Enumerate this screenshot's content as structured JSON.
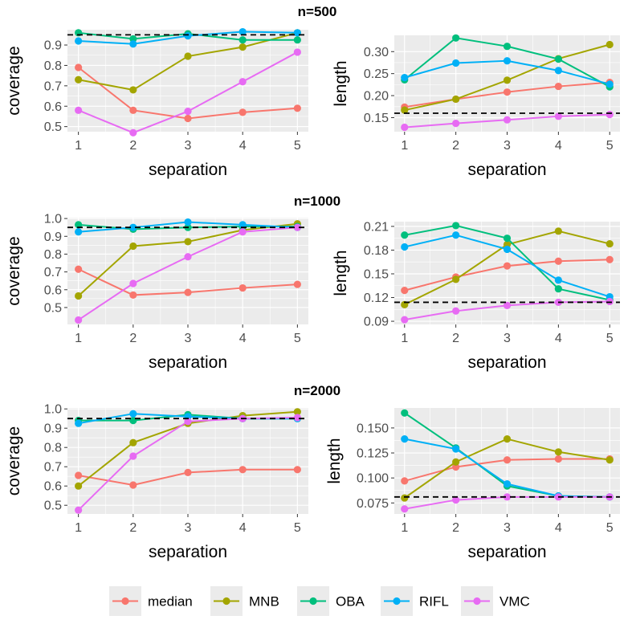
{
  "series_colors": {
    "median": "#F8766D",
    "MNB": "#A3A500",
    "OBA": "#00BF7D",
    "RIFL": "#00B0F6",
    "VMC": "#E76BF3"
  },
  "legend": {
    "items": [
      {
        "name": "median",
        "color": "#F8766D"
      },
      {
        "name": "MNB",
        "color": "#A3A500"
      },
      {
        "name": "OBA",
        "color": "#00BF7D"
      },
      {
        "name": "RIFL",
        "color": "#00B0F6"
      },
      {
        "name": "VMC",
        "color": "#E76BF3"
      }
    ]
  },
  "chart_data": [
    {
      "type": "line",
      "group_title": "n=500",
      "title": "",
      "xlabel": "separation",
      "ylabel": "coverage",
      "x": [
        1,
        2,
        3,
        4,
        5
      ],
      "xlim": [
        0.8,
        5.2
      ],
      "ylim": [
        0.475,
        0.975
      ],
      "yticks": [
        0.5,
        0.6,
        0.7,
        0.8,
        0.9
      ],
      "ytick_labels": [
        "0.5",
        "0.6",
        "0.7",
        "0.8",
        "0.9"
      ],
      "reference_line": 0.95,
      "series": [
        {
          "name": "median",
          "values": [
            0.79,
            0.58,
            0.54,
            0.57,
            0.59
          ]
        },
        {
          "name": "MNB",
          "values": [
            0.73,
            0.68,
            0.845,
            0.89,
            0.96
          ]
        },
        {
          "name": "OBA",
          "values": [
            0.96,
            0.93,
            0.955,
            0.925,
            0.925
          ]
        },
        {
          "name": "RIFL",
          "values": [
            0.92,
            0.905,
            0.945,
            0.965,
            0.96
          ]
        },
        {
          "name": "VMC",
          "values": [
            0.58,
            0.47,
            0.575,
            0.72,
            0.865
          ]
        }
      ]
    },
    {
      "type": "line",
      "group_title": "",
      "title": "",
      "xlabel": "separation",
      "ylabel": "length",
      "x": [
        1,
        2,
        3,
        4,
        5
      ],
      "xlim": [
        0.8,
        5.2
      ],
      "ylim": [
        0.118,
        0.337
      ],
      "yticks": [
        0.15,
        0.2,
        0.25,
        0.3
      ],
      "ytick_labels": [
        "0.15",
        "0.20",
        "0.25",
        "0.30"
      ],
      "reference_line": 0.16,
      "series": [
        {
          "name": "median",
          "values": [
            0.174,
            0.192,
            0.208,
            0.221,
            0.23
          ]
        },
        {
          "name": "MNB",
          "values": [
            0.167,
            0.192,
            0.235,
            0.284,
            0.316
          ]
        },
        {
          "name": "OBA",
          "values": [
            0.236,
            0.331,
            0.312,
            0.283,
            0.22
          ]
        },
        {
          "name": "RIFL",
          "values": [
            0.241,
            0.274,
            0.279,
            0.257,
            0.226
          ]
        },
        {
          "name": "VMC",
          "values": [
            0.128,
            0.137,
            0.145,
            0.153,
            0.157
          ]
        }
      ]
    },
    {
      "type": "line",
      "group_title": "n=1000",
      "title": "",
      "xlabel": "separation",
      "ylabel": "coverage",
      "x": [
        1,
        2,
        3,
        4,
        5
      ],
      "xlim": [
        0.8,
        5.2
      ],
      "ylim": [
        0.405,
        1.005
      ],
      "yticks": [
        0.5,
        0.6,
        0.7,
        0.8,
        0.9,
        1.0
      ],
      "ytick_labels": [
        "0.5",
        "0.6",
        "0.7",
        "0.8",
        "0.9",
        "1.0"
      ],
      "reference_line": 0.95,
      "series": [
        {
          "name": "median",
          "values": [
            0.715,
            0.57,
            0.585,
            0.61,
            0.63
          ]
        },
        {
          "name": "MNB",
          "values": [
            0.565,
            0.845,
            0.87,
            0.935,
            0.97
          ]
        },
        {
          "name": "OBA",
          "values": [
            0.965,
            0.94,
            0.95,
            0.955,
            0.955
          ]
        },
        {
          "name": "RIFL",
          "values": [
            0.925,
            0.95,
            0.98,
            0.965,
            0.95
          ]
        },
        {
          "name": "VMC",
          "values": [
            0.43,
            0.635,
            0.785,
            0.925,
            0.95
          ]
        }
      ]
    },
    {
      "type": "line",
      "group_title": "",
      "title": "",
      "xlabel": "separation",
      "ylabel": "length",
      "x": [
        1,
        2,
        3,
        4,
        5
      ],
      "xlim": [
        0.8,
        5.2
      ],
      "ylim": [
        0.086,
        0.216
      ],
      "yticks": [
        0.09,
        0.12,
        0.15,
        0.18,
        0.21
      ],
      "ytick_labels": [
        "0.09",
        "0.12",
        "0.15",
        "0.18",
        "0.21"
      ],
      "reference_line": 0.114,
      "series": [
        {
          "name": "median",
          "values": [
            0.129,
            0.146,
            0.16,
            0.166,
            0.168
          ]
        },
        {
          "name": "MNB",
          "values": [
            0.111,
            0.143,
            0.187,
            0.204,
            0.188
          ]
        },
        {
          "name": "OBA",
          "values": [
            0.199,
            0.211,
            0.195,
            0.131,
            0.117
          ]
        },
        {
          "name": "RIFL",
          "values": [
            0.184,
            0.199,
            0.181,
            0.142,
            0.121
          ]
        },
        {
          "name": "VMC",
          "values": [
            0.092,
            0.103,
            0.11,
            0.114,
            0.115
          ]
        }
      ]
    },
    {
      "type": "line",
      "group_title": "n=2000",
      "title": "",
      "xlabel": "separation",
      "ylabel": "coverage",
      "x": [
        1,
        2,
        3,
        4,
        5
      ],
      "xlim": [
        0.8,
        5.2
      ],
      "ylim": [
        0.455,
        1.005
      ],
      "yticks": [
        0.5,
        0.6,
        0.7,
        0.8,
        0.9,
        1.0
      ],
      "ytick_labels": [
        "0.5",
        "0.6",
        "0.7",
        "0.8",
        "0.9",
        "1.0"
      ],
      "reference_line": 0.95,
      "series": [
        {
          "name": "median",
          "values": [
            0.655,
            0.605,
            0.67,
            0.685,
            0.685
          ]
        },
        {
          "name": "MNB",
          "values": [
            0.6,
            0.825,
            0.925,
            0.965,
            0.985
          ]
        },
        {
          "name": "OBA",
          "values": [
            0.94,
            0.94,
            0.97,
            0.95,
            0.95
          ]
        },
        {
          "name": "RIFL",
          "values": [
            0.925,
            0.975,
            0.96,
            0.95,
            0.95
          ]
        },
        {
          "name": "VMC",
          "values": [
            0.475,
            0.755,
            0.935,
            0.95,
            0.955
          ]
        }
      ]
    },
    {
      "type": "line",
      "group_title": "",
      "title": "",
      "xlabel": "separation",
      "ylabel": "length",
      "x": [
        1,
        2,
        3,
        4,
        5
      ],
      "xlim": [
        0.8,
        5.2
      ],
      "ylim": [
        0.064,
        0.17
      ],
      "yticks": [
        0.075,
        0.1,
        0.125,
        0.15
      ],
      "ytick_labels": [
        "0.075",
        "0.100",
        "0.125",
        "0.150"
      ],
      "reference_line": 0.081,
      "series": [
        {
          "name": "median",
          "values": [
            0.097,
            0.111,
            0.118,
            0.119,
            0.119
          ]
        },
        {
          "name": "MNB",
          "values": [
            0.08,
            0.116,
            0.139,
            0.126,
            0.118
          ]
        },
        {
          "name": "OBA",
          "values": [
            0.165,
            0.13,
            0.092,
            0.082,
            0.081
          ]
        },
        {
          "name": "RIFL",
          "values": [
            0.139,
            0.129,
            0.094,
            0.082,
            0.081
          ]
        },
        {
          "name": "VMC",
          "values": [
            0.069,
            0.078,
            0.081,
            0.081,
            0.081
          ]
        }
      ]
    }
  ]
}
